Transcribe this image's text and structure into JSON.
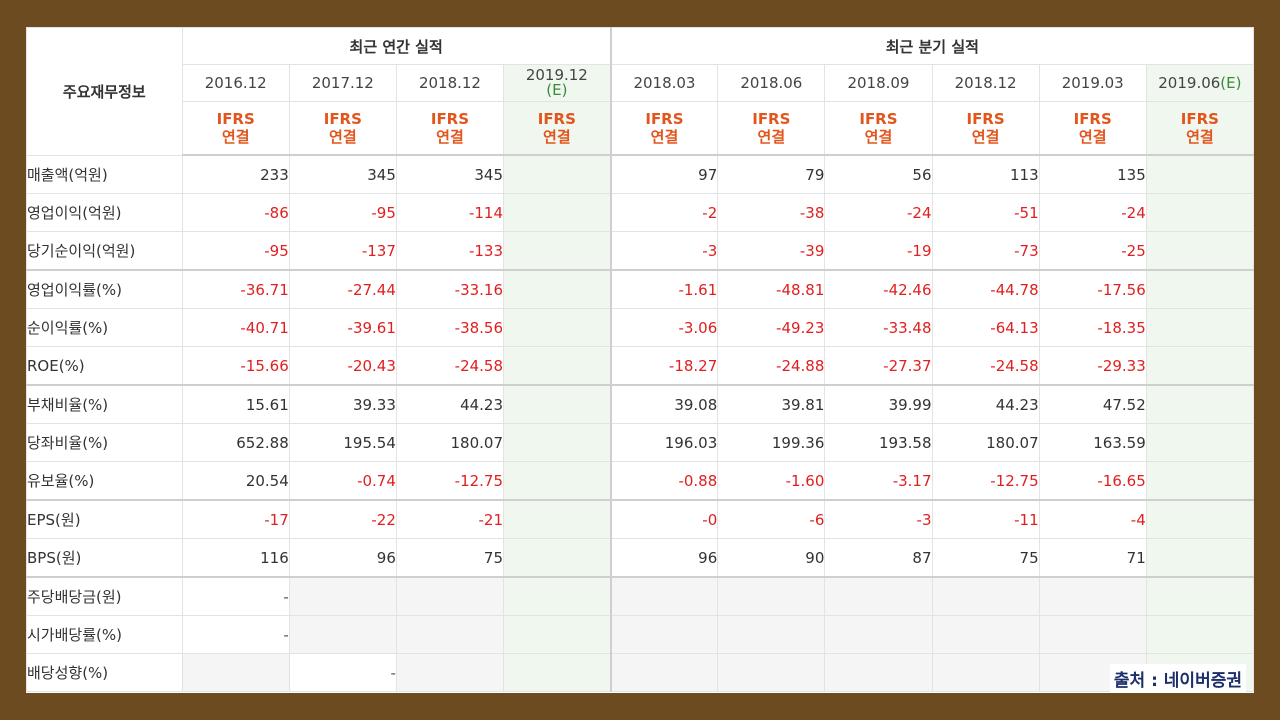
{
  "header": {
    "corner_label": "주요재무정보",
    "annual_group_label": "최근 연간 실적",
    "quarter_group_label": "최근 분기 실적",
    "ifrs_line1": "IFRS",
    "ifrs_line2": "연결",
    "periods": [
      {
        "label": "2016.12",
        "est": ""
      },
      {
        "label": "2017.12",
        "est": ""
      },
      {
        "label": "2018.12",
        "est": ""
      },
      {
        "label": "2019.12",
        "est": "(E)"
      },
      {
        "label": "2018.03",
        "est": ""
      },
      {
        "label": "2018.06",
        "est": ""
      },
      {
        "label": "2018.09",
        "est": ""
      },
      {
        "label": "2018.12",
        "est": ""
      },
      {
        "label": "2019.03",
        "est": ""
      },
      {
        "label": "2019.06",
        "est": "(E)"
      }
    ]
  },
  "rows": [
    {
      "label": "매출액(억원)",
      "values": [
        "233",
        "345",
        "345",
        "",
        "97",
        "79",
        "56",
        "113",
        "135",
        ""
      ]
    },
    {
      "label": "영업이익(억원)",
      "values": [
        "-86",
        "-95",
        "-114",
        "",
        "-2",
        "-38",
        "-24",
        "-51",
        "-24",
        ""
      ]
    },
    {
      "label": "당기순이익(억원)",
      "values": [
        "-95",
        "-137",
        "-133",
        "",
        "-3",
        "-39",
        "-19",
        "-73",
        "-25",
        ""
      ]
    },
    {
      "label": "영업이익률(%)",
      "values": [
        "-36.71",
        "-27.44",
        "-33.16",
        "",
        "-1.61",
        "-48.81",
        "-42.46",
        "-44.78",
        "-17.56",
        ""
      ]
    },
    {
      "label": "순이익률(%)",
      "values": [
        "-40.71",
        "-39.61",
        "-38.56",
        "",
        "-3.06",
        "-49.23",
        "-33.48",
        "-64.13",
        "-18.35",
        ""
      ]
    },
    {
      "label": "ROE(%)",
      "values": [
        "-15.66",
        "-20.43",
        "-24.58",
        "",
        "-18.27",
        "-24.88",
        "-27.37",
        "-24.58",
        "-29.33",
        ""
      ]
    },
    {
      "label": "부채비율(%)",
      "values": [
        "15.61",
        "39.33",
        "44.23",
        "",
        "39.08",
        "39.81",
        "39.99",
        "44.23",
        "47.52",
        ""
      ]
    },
    {
      "label": "당좌비율(%)",
      "values": [
        "652.88",
        "195.54",
        "180.07",
        "",
        "196.03",
        "199.36",
        "193.58",
        "180.07",
        "163.59",
        ""
      ]
    },
    {
      "label": "유보율(%)",
      "values": [
        "20.54",
        "-0.74",
        "-12.75",
        "",
        "-0.88",
        "-1.60",
        "-3.17",
        "-12.75",
        "-16.65",
        ""
      ]
    },
    {
      "label": "EPS(원)",
      "values": [
        "-17",
        "-22",
        "-21",
        "",
        "-0",
        "-6",
        "-3",
        "-11",
        "-4",
        ""
      ]
    },
    {
      "label": "BPS(원)",
      "values": [
        "116",
        "96",
        "75",
        "",
        "96",
        "90",
        "87",
        "75",
        "71",
        ""
      ]
    },
    {
      "label": "주당배당금(원)",
      "values": [
        "-",
        "",
        "",
        "",
        "",
        "",
        "",
        "",
        "",
        ""
      ]
    },
    {
      "label": "시가배당률(%)",
      "values": [
        "-",
        "",
        "",
        "",
        "",
        "",
        "",
        "",
        "",
        ""
      ]
    },
    {
      "label": "배당성향(%)",
      "values": [
        "",
        "-",
        "",
        "",
        "",
        "",
        "",
        "",
        "",
        ""
      ]
    }
  ],
  "source_label": "출처 : 네이버증권"
}
